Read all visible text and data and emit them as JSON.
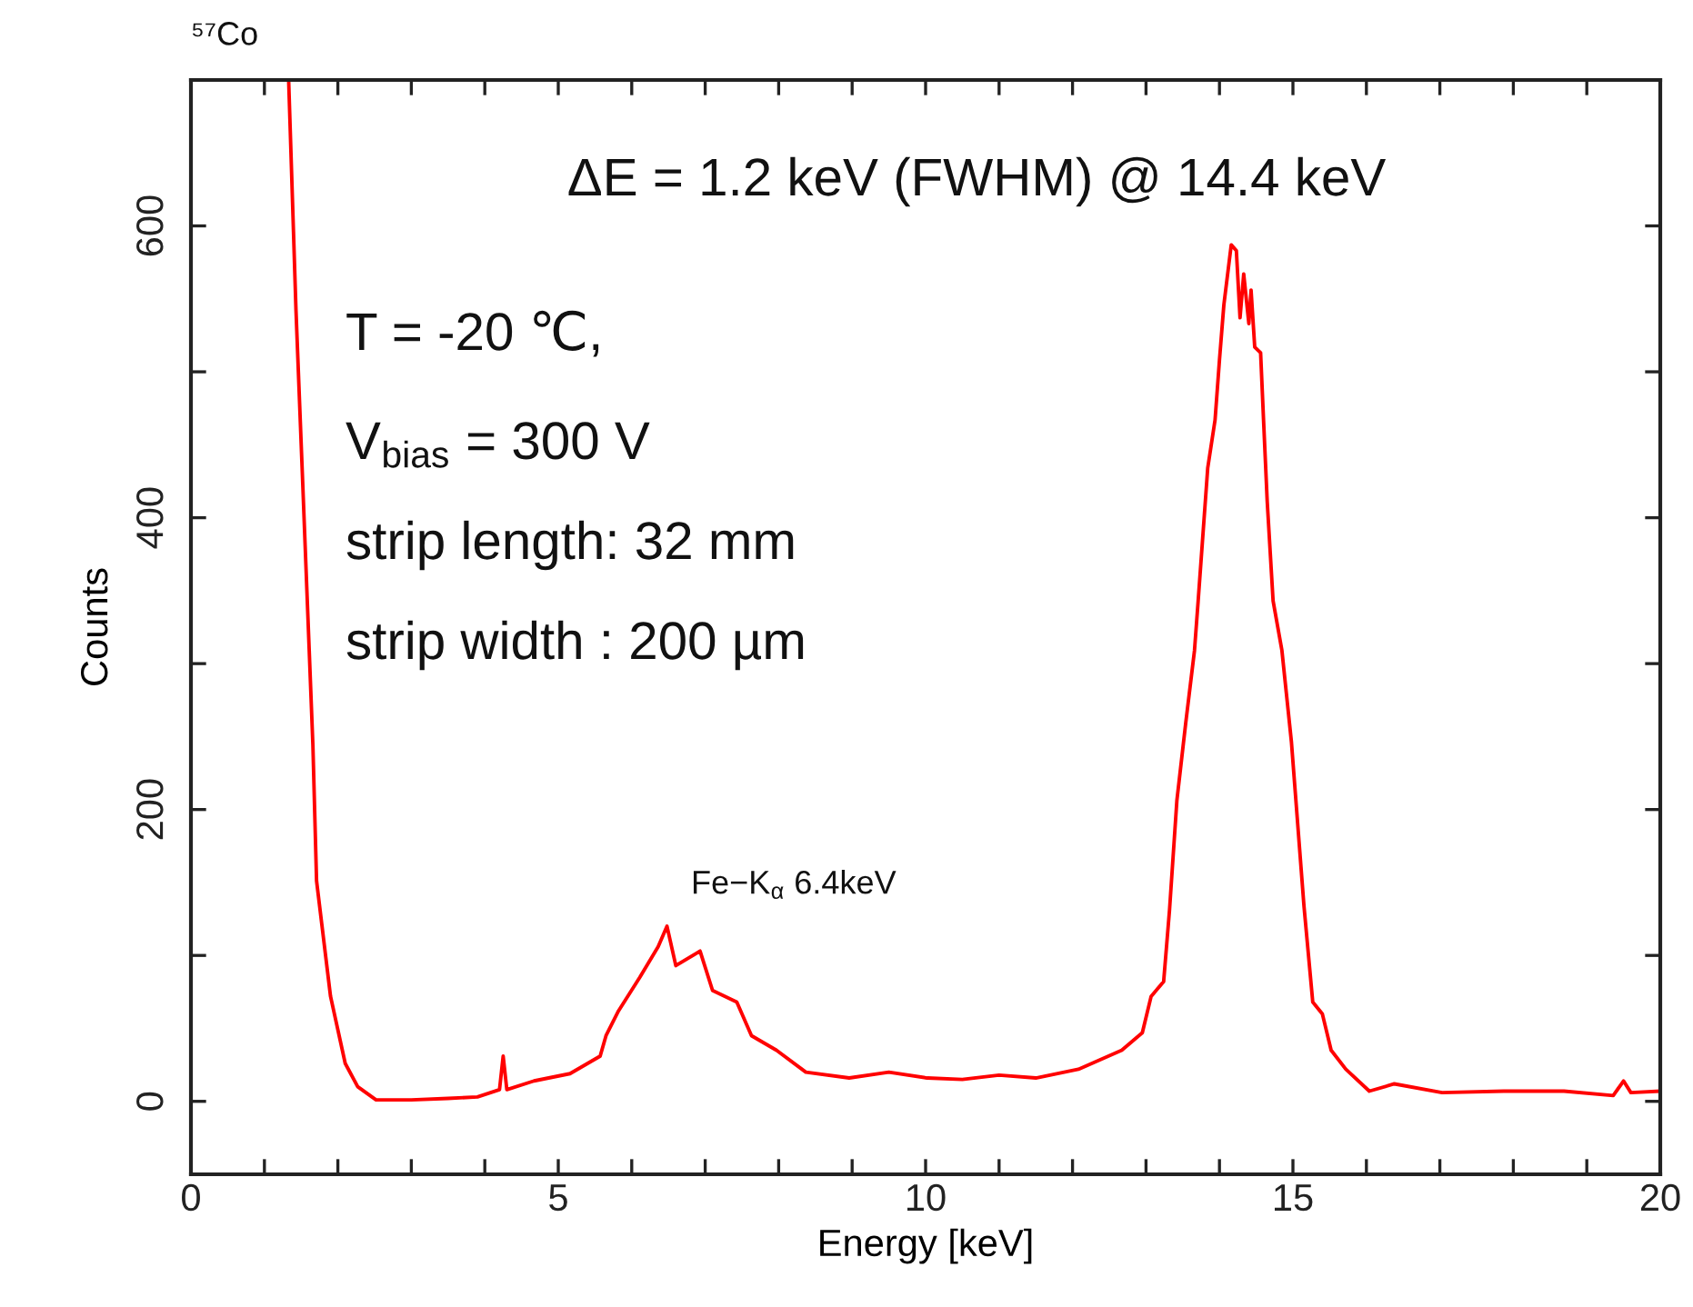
{
  "chart_data": {
    "type": "line",
    "xlabel": "Energy [keV]",
    "ylabel": "Counts",
    "x": [
      1.33,
      1.43,
      1.61,
      1.66,
      1.71,
      1.9,
      2.1,
      2.27,
      2.52,
      3.0,
      3.5,
      3.9,
      4.2,
      4.25,
      4.3,
      4.67,
      5.16,
      5.57,
      5.65,
      5.82,
      6.11,
      6.36,
      6.48,
      6.6,
      6.93,
      7.1,
      7.43,
      7.63,
      7.97,
      8.37,
      8.96,
      9.5,
      10.02,
      10.5,
      11.0,
      11.5,
      12.08,
      12.67,
      12.95,
      13.07,
      13.24,
      13.32,
      13.42,
      13.54,
      13.66,
      13.71,
      13.84,
      13.94,
      14.0,
      14.06,
      14.16,
      14.23,
      14.28,
      14.33,
      14.4,
      14.43,
      14.48,
      14.56,
      14.6,
      14.65,
      14.73,
      14.85,
      14.98,
      15.15,
      15.27,
      15.4,
      15.52,
      15.72,
      16.04,
      16.38,
      17.03,
      17.87,
      18.69,
      19.36,
      19.5,
      19.6,
      20.0
    ],
    "series": [
      {
        "color": "#ff0000",
        "values": [
          700,
          542,
          309,
          244,
          151,
          72,
          26,
          10,
          1,
          1,
          2,
          3,
          8,
          31,
          8,
          14,
          19,
          31,
          45,
          62,
          85,
          106,
          120,
          93,
          103,
          76,
          68,
          45,
          35,
          20,
          16,
          20,
          16,
          15,
          18,
          16,
          22,
          35,
          47,
          72,
          82,
          131,
          206,
          259,
          309,
          343,
          434,
          467,
          508,
          546,
          587,
          583,
          537,
          567,
          533,
          556,
          517,
          513,
          467,
          411,
          343,
          309,
          246,
          134,
          68,
          60,
          35,
          22,
          7,
          12,
          6,
          7,
          7,
          4,
          14,
          6,
          7
        ]
      }
    ],
    "xlim": [
      0,
      20
    ],
    "xticks": [
      0,
      {
        "value": 1,
        "label": null
      },
      {
        "value": 2,
        "label": null
      },
      {
        "value": 3,
        "label": null
      },
      {
        "value": 4,
        "label": null
      },
      5,
      {
        "value": 6,
        "label": null
      },
      {
        "value": 7,
        "label": null
      },
      {
        "value": 8,
        "label": null
      },
      {
        "value": 9,
        "label": null
      },
      10,
      {
        "value": 11,
        "label": null
      },
      {
        "value": 12,
        "label": null
      },
      {
        "value": 13,
        "label": null
      },
      {
        "value": 14,
        "label": null
      },
      15,
      {
        "value": 16,
        "label": null
      },
      {
        "value": 17,
        "label": null
      },
      {
        "value": 18,
        "label": null
      },
      {
        "value": 19,
        "label": null
      },
      20
    ],
    "ylim": [
      -50,
      700
    ],
    "yticks": [
      0,
      {
        "value": 100,
        "label": null
      },
      200,
      {
        "value": 300,
        "label": null
      },
      400,
      {
        "value": 500,
        "label": null
      },
      600
    ],
    "grid": false,
    "marker": "none",
    "line_style": "solid",
    "annotations": [
      "⁵⁷Co",
      "ΔE = 1.2 keV (FWHM) @ 14.4 keV",
      "T = -20 ℃,",
      "V$_{bias}$ = 300 V",
      "strip length: 32 mm",
      "strip width : 200 µm",
      "Fe−K$_{α}$ 6.4keV"
    ]
  }
}
